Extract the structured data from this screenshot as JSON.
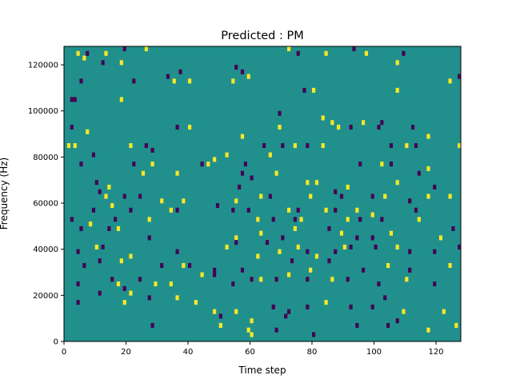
{
  "chart_data": {
    "type": "heatmap",
    "title": "Predicted : PM",
    "xlabel": "Time step",
    "ylabel": "Frequency (Hz)",
    "xlim": [
      0,
      128
    ],
    "ylim": [
      0,
      128000
    ],
    "xticks": [
      0,
      20,
      40,
      60,
      80,
      100,
      120
    ],
    "yticks": [
      0,
      20000,
      40000,
      60000,
      80000,
      100000,
      120000
    ],
    "grid": false,
    "background_value": "mid",
    "colors": {
      "low": "#440154",
      "mid": "#21908d",
      "high": "#fde725"
    },
    "values_legend": [
      "low",
      "mid",
      "high"
    ],
    "cells": [
      [
        1,
        126000,
        "mid"
      ],
      [
        4,
        124000,
        "high"
      ],
      [
        6,
        122000,
        "high"
      ],
      [
        7,
        124000,
        "low"
      ],
      [
        12,
        120000,
        "low"
      ],
      [
        13,
        124000,
        "high"
      ],
      [
        18,
        120000,
        "high"
      ],
      [
        19,
        126000,
        "low"
      ],
      [
        26,
        126000,
        "high"
      ],
      [
        5,
        112000,
        "low"
      ],
      [
        22,
        112000,
        "low"
      ],
      [
        33,
        114000,
        "low"
      ],
      [
        35,
        112000,
        "high"
      ],
      [
        37,
        116000,
        "low"
      ],
      [
        40,
        112000,
        "high"
      ],
      [
        55,
        118000,
        "low"
      ],
      [
        54,
        112000,
        "high"
      ],
      [
        57,
        116000,
        "low"
      ],
      [
        59,
        114000,
        "high"
      ],
      [
        72,
        126000,
        "high"
      ],
      [
        75,
        124000,
        "low"
      ],
      [
        84,
        124000,
        "high"
      ],
      [
        93,
        126000,
        "low"
      ],
      [
        97,
        124000,
        "high"
      ],
      [
        107,
        120000,
        "high"
      ],
      [
        109,
        124000,
        "low"
      ],
      [
        127,
        114000,
        "low"
      ],
      [
        124,
        112000,
        "high"
      ],
      [
        2,
        104000,
        "low"
      ],
      [
        3,
        104000,
        "low"
      ],
      [
        18,
        104000,
        "high"
      ],
      [
        77,
        108000,
        "low"
      ],
      [
        80,
        108000,
        "high"
      ],
      [
        69,
        98000,
        "low"
      ],
      [
        83,
        96000,
        "high"
      ],
      [
        88,
        92000,
        "high"
      ],
      [
        102,
        94000,
        "low"
      ],
      [
        107,
        108000,
        "high"
      ],
      [
        2,
        92000,
        "low"
      ],
      [
        7,
        90000,
        "high"
      ],
      [
        36,
        92000,
        "low"
      ],
      [
        40,
        92000,
        "high"
      ],
      [
        69,
        92000,
        "high"
      ],
      [
        86,
        94000,
        "high"
      ],
      [
        92,
        92000,
        "low"
      ],
      [
        96,
        94000,
        "high"
      ],
      [
        101,
        92000,
        "low"
      ],
      [
        112,
        92000,
        "low"
      ],
      [
        117,
        88000,
        "high"
      ],
      [
        1,
        84000,
        "high"
      ],
      [
        3,
        84000,
        "high"
      ],
      [
        9,
        80000,
        "low"
      ],
      [
        21,
        84000,
        "high"
      ],
      [
        26,
        84000,
        "low"
      ],
      [
        28,
        82000,
        "low"
      ],
      [
        57,
        88000,
        "high"
      ],
      [
        64,
        84000,
        "low"
      ],
      [
        70,
        84000,
        "low"
      ],
      [
        74,
        84000,
        "high"
      ],
      [
        78,
        84000,
        "low"
      ],
      [
        83,
        84000,
        "high"
      ],
      [
        105,
        84000,
        "low"
      ],
      [
        110,
        84000,
        "high"
      ],
      [
        113,
        84000,
        "low"
      ],
      [
        127,
        84000,
        "high"
      ],
      [
        5,
        76000,
        "low"
      ],
      [
        22,
        76000,
        "low"
      ],
      [
        28,
        76000,
        "high"
      ],
      [
        44,
        76000,
        "low"
      ],
      [
        46,
        76000,
        "high"
      ],
      [
        48,
        78000,
        "high"
      ],
      [
        52,
        80000,
        "high"
      ],
      [
        58,
        76000,
        "low"
      ],
      [
        60,
        70000,
        "low"
      ],
      [
        66,
        80000,
        "high"
      ],
      [
        68,
        72000,
        "high"
      ],
      [
        95,
        76000,
        "low"
      ],
      [
        102,
        76000,
        "high"
      ],
      [
        105,
        76000,
        "low"
      ],
      [
        114,
        72000,
        "low"
      ],
      [
        117,
        74000,
        "high"
      ],
      [
        25,
        72000,
        "high"
      ],
      [
        36,
        72000,
        "high"
      ],
      [
        10,
        68000,
        "low"
      ],
      [
        14,
        66000,
        "high"
      ],
      [
        57,
        72000,
        "low"
      ],
      [
        56,
        66000,
        "low"
      ],
      [
        78,
        68000,
        "high"
      ],
      [
        81,
        68000,
        "high"
      ],
      [
        87,
        64000,
        "low"
      ],
      [
        91,
        66000,
        "high"
      ],
      [
        107,
        68000,
        "high"
      ],
      [
        119,
        66000,
        "low"
      ],
      [
        11,
        64000,
        "low"
      ],
      [
        13,
        62000,
        "high"
      ],
      [
        19,
        62000,
        "low"
      ],
      [
        24,
        62000,
        "low"
      ],
      [
        31,
        60000,
        "high"
      ],
      [
        38,
        60000,
        "high"
      ],
      [
        49,
        58000,
        "low"
      ],
      [
        55,
        60000,
        "high"
      ],
      [
        63,
        62000,
        "high"
      ],
      [
        66,
        62000,
        "low"
      ],
      [
        79,
        62000,
        "high"
      ],
      [
        89,
        62000,
        "low"
      ],
      [
        99,
        62000,
        "low"
      ],
      [
        103,
        62000,
        "high"
      ],
      [
        111,
        60000,
        "low"
      ],
      [
        117,
        62000,
        "high"
      ],
      [
        124,
        62000,
        "high"
      ],
      [
        9,
        56000,
        "low"
      ],
      [
        15,
        58000,
        "high"
      ],
      [
        21,
        56000,
        "low"
      ],
      [
        34,
        56000,
        "high"
      ],
      [
        36,
        56000,
        "low"
      ],
      [
        54,
        56000,
        "low"
      ],
      [
        59,
        56000,
        "low"
      ],
      [
        72,
        56000,
        "high"
      ],
      [
        75,
        56000,
        "low"
      ],
      [
        84,
        56000,
        "high"
      ],
      [
        87,
        56000,
        "low"
      ],
      [
        94,
        56000,
        "high"
      ],
      [
        99,
        54000,
        "high"
      ],
      [
        113,
        56000,
        "low"
      ],
      [
        2,
        52000,
        "low"
      ],
      [
        8,
        50000,
        "high"
      ],
      [
        16,
        52000,
        "low"
      ],
      [
        27,
        52000,
        "high"
      ],
      [
        62,
        52000,
        "high"
      ],
      [
        67,
        52000,
        "low"
      ],
      [
        74,
        52000,
        "low"
      ],
      [
        76,
        52000,
        "high"
      ],
      [
        91,
        52000,
        "high"
      ],
      [
        95,
        52000,
        "low"
      ],
      [
        102,
        52000,
        "low"
      ],
      [
        114,
        52000,
        "high"
      ],
      [
        125,
        48000,
        "low"
      ],
      [
        5,
        48000,
        "low"
      ],
      [
        14,
        48000,
        "low"
      ],
      [
        17,
        48000,
        "high"
      ],
      [
        27,
        44000,
        "low"
      ],
      [
        55,
        44000,
        "high"
      ],
      [
        63,
        46000,
        "high"
      ],
      [
        70,
        44000,
        "low"
      ],
      [
        74,
        48000,
        "high"
      ],
      [
        85,
        48000,
        "low"
      ],
      [
        89,
        46000,
        "high"
      ],
      [
        94,
        44000,
        "low"
      ],
      [
        99,
        44000,
        "low"
      ],
      [
        105,
        46000,
        "high"
      ],
      [
        121,
        44000,
        "high"
      ],
      [
        4,
        38000,
        "low"
      ],
      [
        10,
        40000,
        "high"
      ],
      [
        12,
        40000,
        "low"
      ],
      [
        21,
        36000,
        "high"
      ],
      [
        36,
        38000,
        "low"
      ],
      [
        52,
        40000,
        "high"
      ],
      [
        55,
        42000,
        "low"
      ],
      [
        65,
        42000,
        "low"
      ],
      [
        69,
        38000,
        "high"
      ],
      [
        75,
        40000,
        "high"
      ],
      [
        78,
        38000,
        "low"
      ],
      [
        81,
        36000,
        "high"
      ],
      [
        87,
        38000,
        "low"
      ],
      [
        90,
        40000,
        "high"
      ],
      [
        92,
        40000,
        "low"
      ],
      [
        100,
        40000,
        "low"
      ],
      [
        107,
        40000,
        "high"
      ],
      [
        111,
        38000,
        "low"
      ],
      [
        119,
        38000,
        "low"
      ],
      [
        127,
        40000,
        "low"
      ],
      [
        6,
        32000,
        "low"
      ],
      [
        11,
        34000,
        "low"
      ],
      [
        18,
        34000,
        "high"
      ],
      [
        31,
        32000,
        "low"
      ],
      [
        38,
        32000,
        "high"
      ],
      [
        40,
        32000,
        "low"
      ],
      [
        48,
        30000,
        "low"
      ],
      [
        57,
        30000,
        "low"
      ],
      [
        62,
        36000,
        "high"
      ],
      [
        73,
        34000,
        "low"
      ],
      [
        79,
        30000,
        "high"
      ],
      [
        85,
        34000,
        "low"
      ],
      [
        96,
        30000,
        "low"
      ],
      [
        104,
        32000,
        "high"
      ],
      [
        111,
        30000,
        "low"
      ],
      [
        124,
        32000,
        "high"
      ],
      [
        4,
        24000,
        "low"
      ],
      [
        15,
        26000,
        "low"
      ],
      [
        17,
        24000,
        "high"
      ],
      [
        19,
        22000,
        "low"
      ],
      [
        24,
        26000,
        "low"
      ],
      [
        29,
        24000,
        "high"
      ],
      [
        34,
        24000,
        "high"
      ],
      [
        44,
        28000,
        "high"
      ],
      [
        48,
        28000,
        "low"
      ],
      [
        54,
        24000,
        "low"
      ],
      [
        60,
        26000,
        "low"
      ],
      [
        63,
        26000,
        "high"
      ],
      [
        68,
        26000,
        "low"
      ],
      [
        72,
        28000,
        "high"
      ],
      [
        78,
        26000,
        "low"
      ],
      [
        86,
        26000,
        "high"
      ],
      [
        91,
        26000,
        "low"
      ],
      [
        101,
        24000,
        "low"
      ],
      [
        110,
        26000,
        "high"
      ],
      [
        119,
        24000,
        "low"
      ],
      [
        11,
        20000,
        "low"
      ],
      [
        21,
        20000,
        "high"
      ],
      [
        27,
        18000,
        "low"
      ],
      [
        36,
        18000,
        "high"
      ],
      [
        42,
        16000,
        "high"
      ],
      [
        48,
        12000,
        "high"
      ],
      [
        50,
        10000,
        "low"
      ],
      [
        55,
        12000,
        "high"
      ],
      [
        60,
        8000,
        "high"
      ],
      [
        67,
        14000,
        "low"
      ],
      [
        72,
        12000,
        "low"
      ],
      [
        78,
        14000,
        "low"
      ],
      [
        84,
        16000,
        "high"
      ],
      [
        92,
        14000,
        "low"
      ],
      [
        99,
        14000,
        "low"
      ],
      [
        103,
        18000,
        "low"
      ],
      [
        109,
        12000,
        "high"
      ],
      [
        122,
        12000,
        "high"
      ],
      [
        4,
        16000,
        "low"
      ],
      [
        19,
        16000,
        "high"
      ],
      [
        28,
        6000,
        "low"
      ],
      [
        50,
        6000,
        "high"
      ],
      [
        59,
        4000,
        "high"
      ],
      [
        60,
        2000,
        "high"
      ],
      [
        68,
        4000,
        "low"
      ],
      [
        71,
        10000,
        "low"
      ],
      [
        80,
        2000,
        "low"
      ],
      [
        94,
        6000,
        "low"
      ],
      [
        104,
        6000,
        "low"
      ],
      [
        107,
        8000,
        "low"
      ],
      [
        117,
        4000,
        "high"
      ],
      [
        126,
        6000,
        "high"
      ]
    ]
  }
}
